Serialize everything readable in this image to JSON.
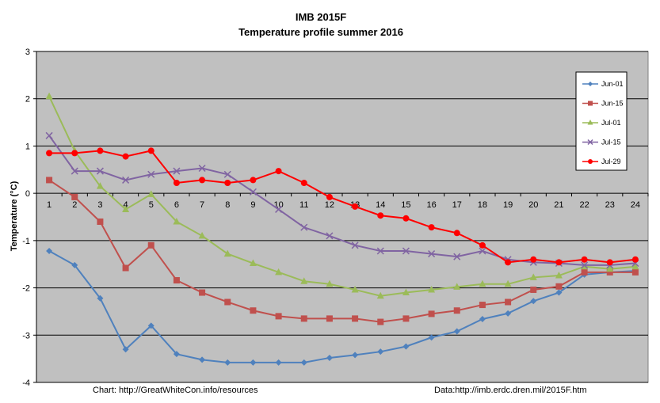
{
  "chart_data": {
    "type": "line",
    "title": "IMB 2015F",
    "subtitle": "Temperature profile summer 2016",
    "xlabel": "",
    "ylabel": "Temperature  (°C)",
    "x": [
      1,
      2,
      3,
      4,
      5,
      6,
      7,
      8,
      9,
      10,
      11,
      12,
      13,
      14,
      15,
      16,
      17,
      18,
      19,
      20,
      21,
      22,
      23,
      24
    ],
    "x_tick_labels": [
      "1",
      "2",
      "3",
      "4",
      "5",
      "6",
      "7",
      "8",
      "9",
      "10",
      "11",
      "12",
      "13",
      "14",
      "15",
      "16",
      "17",
      "18",
      "19",
      "20",
      "21",
      "22",
      "23",
      "24"
    ],
    "ylim": [
      -4,
      3
    ],
    "y_ticks": [
      3,
      2,
      1,
      0,
      -1,
      -2,
      -3,
      -4
    ],
    "grid": true,
    "legend_position": "right",
    "plot_background": "#c0c0c0",
    "series": [
      {
        "name": "Jun-01",
        "color": "#4f81bd",
        "marker": "diamond",
        "values": [
          -1.22,
          -1.52,
          -2.22,
          -3.3,
          -2.8,
          -3.4,
          -3.52,
          -3.58,
          -3.58,
          -3.58,
          -3.58,
          -3.48,
          -3.42,
          -3.35,
          -3.24,
          -3.05,
          -2.92,
          -2.66,
          -2.54,
          -2.28,
          -2.1,
          -1.72,
          -1.67,
          -1.64
        ]
      },
      {
        "name": "Jun-15",
        "color": "#c0504d",
        "marker": "square",
        "values": [
          0.28,
          -0.08,
          -0.6,
          -1.58,
          -1.1,
          -1.84,
          -2.1,
          -2.3,
          -2.48,
          -2.6,
          -2.65,
          -2.65,
          -2.65,
          -2.72,
          -2.65,
          -2.55,
          -2.48,
          -2.36,
          -2.3,
          -2.04,
          -1.97,
          -1.67,
          -1.67,
          -1.67
        ]
      },
      {
        "name": "Jul-01",
        "color": "#9bbb59",
        "marker": "triangle",
        "values": [
          2.05,
          0.9,
          0.15,
          -0.34,
          -0.02,
          -0.6,
          -0.9,
          -1.28,
          -1.48,
          -1.67,
          -1.86,
          -1.92,
          -2.04,
          -2.17,
          -2.1,
          -2.04,
          -1.98,
          -1.92,
          -1.92,
          -1.78,
          -1.74,
          -1.55,
          -1.6,
          -1.55
        ]
      },
      {
        "name": "Jul-15",
        "color": "#8064a2",
        "marker": "x",
        "values": [
          1.22,
          0.47,
          0.47,
          0.28,
          0.4,
          0.47,
          0.53,
          0.4,
          0.03,
          -0.34,
          -0.72,
          -0.9,
          -1.1,
          -1.22,
          -1.22,
          -1.28,
          -1.34,
          -1.22,
          -1.4,
          -1.46,
          -1.48,
          -1.52,
          -1.52,
          -1.48
        ]
      },
      {
        "name": "Jul-29",
        "color": "#ff0000",
        "marker": "circle",
        "values": [
          0.85,
          0.85,
          0.9,
          0.78,
          0.9,
          0.22,
          0.28,
          0.22,
          0.28,
          0.47,
          0.22,
          -0.08,
          -0.28,
          -0.47,
          -0.53,
          -0.72,
          -0.84,
          -1.1,
          -1.46,
          -1.4,
          -1.46,
          -1.4,
          -1.46,
          -1.4
        ]
      }
    ],
    "annotations": [
      "Chart: http://GreatWhiteCon.info/resources",
      "Data:http://imb.erdc.dren.mil/2015F.htm"
    ]
  }
}
